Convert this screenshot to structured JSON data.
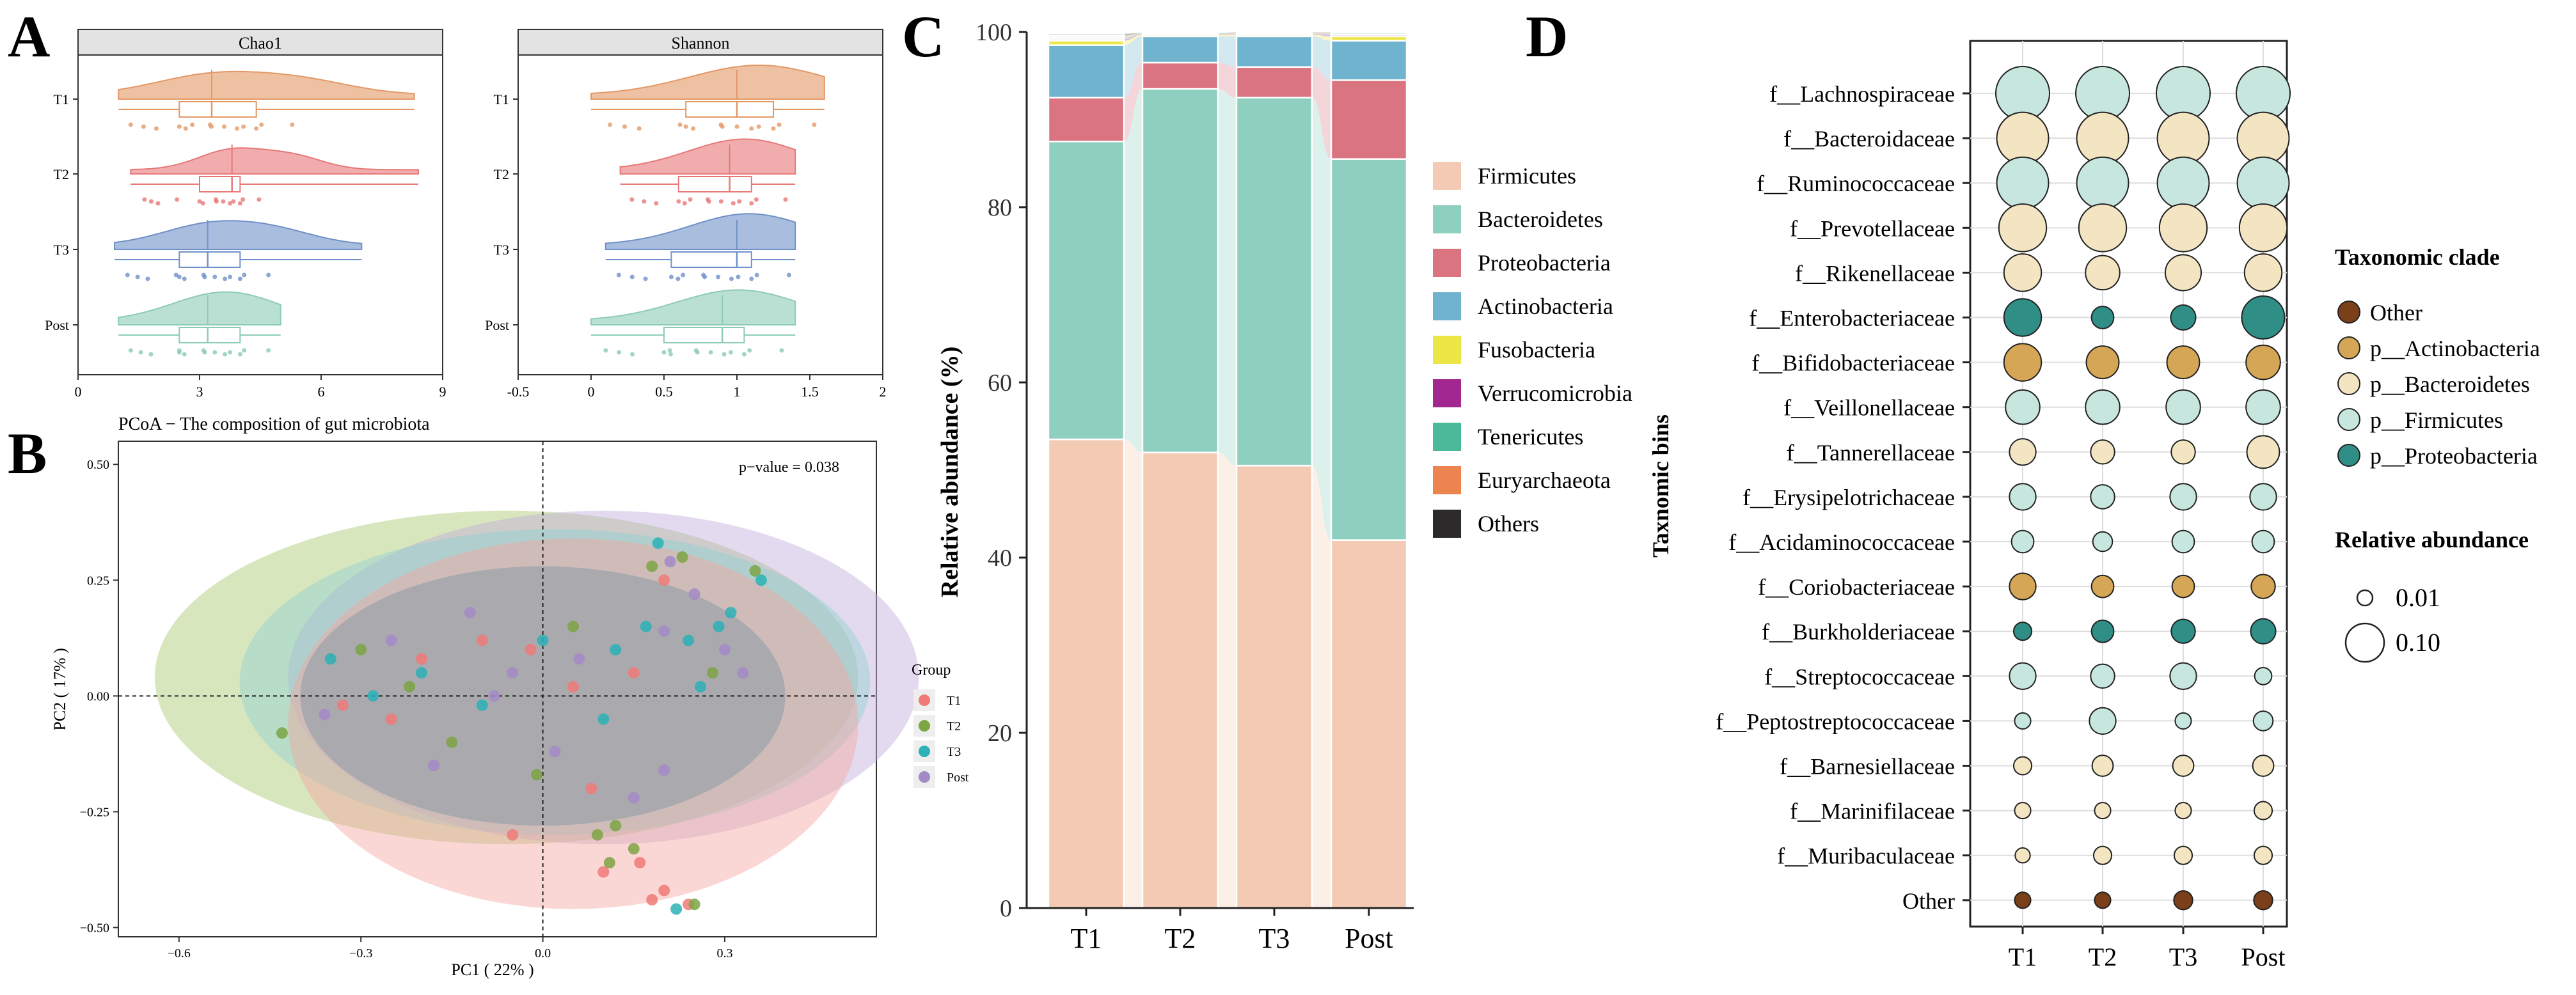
{
  "panels": {
    "A": {
      "letter": "A",
      "groups": [
        "T1",
        "T2",
        "T3",
        "Post"
      ],
      "colors": {
        "T1": "#e39866",
        "T2": "#e87777",
        "T3": "#6f91c8",
        "Post": "#8ccbb6"
      },
      "chao1": {
        "title": "Chao1",
        "ticks": [
          "0",
          "3",
          "6",
          "9"
        ],
        "range": [
          0,
          9
        ],
        "stats": [
          {
            "group": "T1",
            "min": 1.0,
            "q1": 2.5,
            "median": 3.3,
            "q3": 4.4,
            "max": 8.3
          },
          {
            "group": "T2",
            "min": 1.3,
            "q1": 3.0,
            "median": 3.8,
            "q3": 4.0,
            "max": 8.4
          },
          {
            "group": "T3",
            "min": 0.9,
            "q1": 2.5,
            "median": 3.2,
            "q3": 4.0,
            "max": 7.0
          },
          {
            "group": "Post",
            "min": 1.0,
            "q1": 2.5,
            "median": 3.2,
            "q3": 4.0,
            "max": 5.0
          }
        ]
      },
      "shannon": {
        "title": "Shannon",
        "ticks": [
          "-0.5",
          "0",
          "0.5",
          "1",
          "1.5",
          "2"
        ],
        "range": [
          -0.5,
          2
        ],
        "stats": [
          {
            "group": "T1",
            "min": 0.0,
            "q1": 0.65,
            "median": 1.0,
            "q3": 1.25,
            "max": 1.6
          },
          {
            "group": "T2",
            "min": 0.2,
            "q1": 0.6,
            "median": 0.95,
            "q3": 1.1,
            "max": 1.4
          },
          {
            "group": "T3",
            "min": 0.1,
            "q1": 0.55,
            "median": 1.0,
            "q3": 1.1,
            "max": 1.4
          },
          {
            "group": "Post",
            "min": 0.0,
            "q1": 0.5,
            "median": 0.9,
            "q3": 1.05,
            "max": 1.4
          }
        ]
      }
    },
    "B": {
      "letter": "B",
      "title": "PCoA − The composition of gut microbiota",
      "pvalue": "p−value = 0.038",
      "xlabel": "PC1 ( 22% )",
      "ylabel": "PC2 ( 17% )",
      "xticks": [
        "−0.6",
        "−0.3",
        "0.0",
        "0.3"
      ],
      "yticks": [
        "0.50",
        "0.25",
        "0.00",
        "−0.25",
        "−0.50"
      ],
      "legend_title": "Group",
      "legend": [
        "T1",
        "T2",
        "T3",
        "Post"
      ],
      "colors": {
        "T1": "#f07a78",
        "T2": "#7ca543",
        "T3": "#2bb2b6",
        "Post": "#a38ac7"
      }
    },
    "C": {
      "letter": "C",
      "ylabel": "Relative abundance (%)",
      "yticks": [
        "0",
        "20",
        "40",
        "60",
        "80",
        "100"
      ]
    },
    "D": {
      "letter": "D",
      "ylabel": "Taxnomic bins",
      "legend_clade_title": "Taxonomic clade",
      "legend_clades": [
        {
          "name": "Other",
          "color": "#7b3f1a"
        },
        {
          "name": "p__Actinobacteria",
          "color": "#d4a656"
        },
        {
          "name": "p__Bacteroidetes",
          "color": "#f4e5c2"
        },
        {
          "name": "p__Firmicutes",
          "color": "#c7e6de"
        },
        {
          "name": "p__Proteobacteria",
          "color": "#2f8f87"
        }
      ],
      "legend_size_title": "Relative abundance",
      "legend_sizes": [
        {
          "label": "0.01",
          "value": 0.01
        },
        {
          "label": "0.10",
          "value": 0.1
        }
      ]
    }
  },
  "chart_data": [
    {
      "type": "box",
      "title": "Chao1",
      "categories": [
        "T1",
        "T2",
        "T3",
        "Post"
      ],
      "xlim": [
        0,
        9
      ]
    },
    {
      "type": "box",
      "title": "Shannon",
      "categories": [
        "T1",
        "T2",
        "T3",
        "Post"
      ],
      "xlim": [
        -0.5,
        2
      ]
    },
    {
      "type": "scatter",
      "title": "PCoA − The composition of gut microbiota",
      "xlabel": "PC1 ( 22% )",
      "ylabel": "PC2 ( 17% )",
      "xlim": [
        -0.7,
        0.55
      ],
      "ylim": [
        -0.52,
        0.55
      ],
      "ellipses": [
        {
          "group": "T2",
          "cx": -0.06,
          "cy": 0.04,
          "rx": 0.58,
          "ry": 0.36,
          "color": "#a9c86e"
        },
        {
          "group": "Post",
          "cx": 0.1,
          "cy": 0.04,
          "rx": 0.52,
          "ry": 0.36,
          "color": "#c0aedb"
        },
        {
          "group": "T3",
          "cx": 0.02,
          "cy": 0.03,
          "rx": 0.52,
          "ry": 0.33,
          "color": "#90d0d2"
        },
        {
          "group": "T1",
          "cx": 0.05,
          "cy": -0.06,
          "rx": 0.47,
          "ry": 0.4,
          "color": "#f4a6a0"
        },
        {
          "group": "Core",
          "cx": 0.0,
          "cy": 0.0,
          "rx": 0.4,
          "ry": 0.28,
          "color": "#8c9aa5"
        }
      ],
      "series": [
        {
          "name": "T1",
          "points": [
            [
              0.2,
              -0.42
            ],
            [
              0.18,
              -0.44
            ],
            [
              0.24,
              -0.45
            ],
            [
              0.1,
              -0.38
            ],
            [
              -0.05,
              -0.3
            ],
            [
              0.16,
              -0.36
            ],
            [
              -0.2,
              0.08
            ],
            [
              -0.1,
              0.12
            ],
            [
              0.05,
              0.02
            ],
            [
              0.15,
              0.05
            ],
            [
              -0.25,
              -0.05
            ],
            [
              0.2,
              0.25
            ],
            [
              -0.33,
              -0.02
            ],
            [
              0.08,
              -0.2
            ],
            [
              -0.02,
              0.1
            ]
          ]
        },
        {
          "name": "T2",
          "points": [
            [
              0.25,
              -0.45
            ],
            [
              0.11,
              -0.36
            ],
            [
              0.15,
              -0.33
            ],
            [
              0.09,
              -0.3
            ],
            [
              -0.01,
              -0.17
            ],
            [
              0.12,
              -0.28
            ],
            [
              0.18,
              0.28
            ],
            [
              0.23,
              0.3
            ],
            [
              0.35,
              0.27
            ],
            [
              -0.43,
              -0.08
            ],
            [
              -0.3,
              0.1
            ],
            [
              -0.15,
              -0.1
            ],
            [
              0.05,
              0.15
            ],
            [
              0.28,
              0.05
            ],
            [
              -0.22,
              0.02
            ]
          ]
        },
        {
          "name": "T3",
          "points": [
            [
              0.22,
              -0.46
            ],
            [
              0.31,
              0.18
            ],
            [
              0.36,
              0.25
            ],
            [
              0.24,
              0.12
            ],
            [
              0.29,
              0.15
            ],
            [
              0.17,
              0.15
            ],
            [
              0.19,
              0.33
            ],
            [
              -0.35,
              0.08
            ],
            [
              -0.2,
              0.05
            ],
            [
              0.0,
              0.12
            ],
            [
              0.1,
              -0.05
            ],
            [
              -0.1,
              -0.02
            ],
            [
              0.12,
              0.1
            ],
            [
              -0.28,
              0.0
            ],
            [
              0.26,
              0.02
            ]
          ]
        },
        {
          "name": "Post",
          "points": [
            [
              0.2,
              0.14
            ],
            [
              0.21,
              0.29
            ],
            [
              0.33,
              0.05
            ],
            [
              0.2,
              -0.16
            ],
            [
              -0.25,
              0.12
            ],
            [
              -0.05,
              0.05
            ],
            [
              0.15,
              -0.22
            ],
            [
              -0.36,
              -0.04
            ],
            [
              0.06,
              0.08
            ],
            [
              -0.12,
              0.18
            ],
            [
              0.25,
              0.22
            ],
            [
              -0.18,
              -0.15
            ],
            [
              0.02,
              -0.12
            ],
            [
              0.3,
              0.1
            ],
            [
              -0.08,
              0.0
            ]
          ]
        }
      ]
    },
    {
      "type": "bar",
      "stacked": true,
      "ylabel": "Relative abundance (%)",
      "ylim": [
        0,
        100
      ],
      "categories": [
        "T1",
        "T2",
        "T3",
        "Post"
      ],
      "series": [
        {
          "name": "Firmicutes",
          "color": "#f3cbb4",
          "values": [
            53.5,
            52.0,
            50.5,
            42.0
          ]
        },
        {
          "name": "Bacteroidetes",
          "color": "#8ecfbf",
          "values": [
            34.0,
            41.5,
            42.0,
            43.5
          ]
        },
        {
          "name": "Proteobacteria",
          "color": "#da7480",
          "values": [
            5.0,
            3.0,
            3.5,
            9.0
          ]
        },
        {
          "name": "Actinobacteria",
          "color": "#6fb3ce",
          "values": [
            6.0,
            3.0,
            3.5,
            4.5
          ]
        },
        {
          "name": "Fusobacteria",
          "color": "#ece646",
          "values": [
            0.5,
            0.2,
            0.2,
            0.5
          ]
        },
        {
          "name": "Verrucomicrobia",
          "color": "#a2288f",
          "values": [
            0.2,
            0.1,
            0.1,
            0.2
          ]
        },
        {
          "name": "Tenericutes",
          "color": "#4cba9a",
          "values": [
            0.2,
            0.1,
            0.1,
            0.2
          ]
        },
        {
          "name": "Euryarchaeota",
          "color": "#ed8450",
          "values": [
            0.2,
            0.0,
            0.1,
            0.1
          ]
        },
        {
          "name": "Others",
          "color": "#2c2a2a",
          "values": [
            0.2,
            0.0,
            0.0,
            0.0
          ]
        }
      ]
    },
    {
      "type": "bubble",
      "columns": [
        "T1",
        "T2",
        "T3",
        "Post"
      ],
      "rows": [
        {
          "name": "f__Lachnospiraceae",
          "clade": "p__Firmicutes",
          "values": [
            0.12,
            0.12,
            0.12,
            0.12
          ]
        },
        {
          "name": "f__Bacteroidaceae",
          "clade": "p__Bacteroidetes",
          "values": [
            0.11,
            0.11,
            0.11,
            0.11
          ]
        },
        {
          "name": "f__Ruminococcaceae",
          "clade": "p__Firmicutes",
          "values": [
            0.11,
            0.11,
            0.11,
            0.11
          ]
        },
        {
          "name": "f__Prevotellaceae",
          "clade": "p__Bacteroidetes",
          "values": [
            0.09,
            0.09,
            0.09,
            0.09
          ]
        },
        {
          "name": "f__Rikenellaceae",
          "clade": "p__Bacteroidetes",
          "values": [
            0.05,
            0.04,
            0.045,
            0.05
          ]
        },
        {
          "name": "f__Enterobacteriaceae",
          "clade": "p__Proteobacteria",
          "values": [
            0.05,
            0.012,
            0.017,
            0.07
          ]
        },
        {
          "name": "f__Bifidobacteriaceae",
          "clade": "p__Actinobacteria",
          "values": [
            0.05,
            0.035,
            0.035,
            0.04
          ]
        },
        {
          "name": "f__Veillonellaceae",
          "clade": "p__Firmicutes",
          "values": [
            0.04,
            0.04,
            0.04,
            0.04
          ]
        },
        {
          "name": "f__Tannerellaceae",
          "clade": "p__Bacteroidetes",
          "values": [
            0.02,
            0.015,
            0.015,
            0.035
          ]
        },
        {
          "name": "f__Erysipelotrichaceae",
          "clade": "p__Firmicutes",
          "values": [
            0.02,
            0.015,
            0.02,
            0.02
          ]
        },
        {
          "name": "f__Acidaminococcaceae",
          "clade": "p__Firmicutes",
          "values": [
            0.012,
            0.008,
            0.012,
            0.012
          ]
        },
        {
          "name": "f__Coriobacteriaceae",
          "clade": "p__Actinobacteria",
          "values": [
            0.02,
            0.012,
            0.012,
            0.015
          ]
        },
        {
          "name": "f__Burkholderiaceae",
          "clade": "p__Proteobacteria",
          "values": [
            0.006,
            0.012,
            0.015,
            0.017
          ]
        },
        {
          "name": "f__Streptococcaceae",
          "clade": "p__Firmicutes",
          "values": [
            0.02,
            0.015,
            0.02,
            0.005
          ]
        },
        {
          "name": "f__Peptostreptococcaceae",
          "clade": "p__Firmicutes",
          "values": [
            0.004,
            0.02,
            0.004,
            0.008
          ]
        },
        {
          "name": "f__Barnesiellaceae",
          "clade": "p__Bacteroidetes",
          "values": [
            0.006,
            0.01,
            0.01,
            0.01
          ]
        },
        {
          "name": "f__Marinifilaceae",
          "clade": "p__Bacteroidetes",
          "values": [
            0.004,
            0.004,
            0.004,
            0.006
          ]
        },
        {
          "name": "f__Muribaculaceae",
          "clade": "p__Bacteroidetes",
          "values": [
            0.003,
            0.006,
            0.006,
            0.006
          ]
        },
        {
          "name": "Other",
          "clade": "Other",
          "values": [
            0.004,
            0.004,
            0.007,
            0.007
          ]
        }
      ]
    }
  ]
}
